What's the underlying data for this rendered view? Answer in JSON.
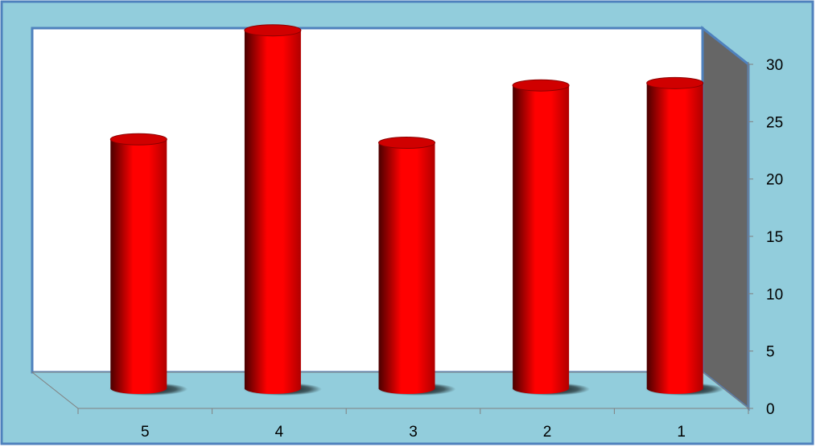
{
  "chart_data": {
    "type": "bar",
    "style": "3d-cylinder",
    "categories": [
      "5",
      "4",
      "3",
      "2",
      "1"
    ],
    "series": [
      {
        "values": [
          21.5,
          31,
          21.2,
          26.2,
          26.4
        ]
      }
    ],
    "ylim": [
      0,
      30
    ],
    "y_ticks": [
      "0",
      "5",
      "10",
      "15",
      "20",
      "25",
      "30"
    ],
    "y_axis_side": "right",
    "title": "",
    "xlabel": "",
    "ylabel": "",
    "legend": "none",
    "grid": false,
    "colors": {
      "background": "#92CDDC",
      "frame": "#4F81BD",
      "plot_area": "#FFFFFF",
      "side_wall": "#666666",
      "floor": "#92CDDC",
      "bar": "#FF0000",
      "bar_dark": "#4A0000",
      "shadow": "#000000",
      "axis_line": "#808080"
    }
  }
}
